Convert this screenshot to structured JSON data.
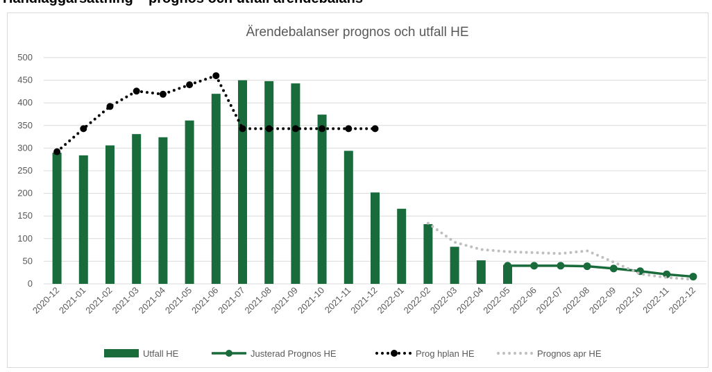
{
  "header": {
    "title": "Handläggarsättning – prognos och utfall ärendebalans"
  },
  "chart_data": {
    "type": "bar",
    "title": "Ärendebalanser prognos och utfall HE",
    "categories": [
      "2020-12",
      "2021-01",
      "2021-02",
      "2021-03",
      "2021-04",
      "2021-05",
      "2021-06",
      "2021-07",
      "2021-08",
      "2021-09",
      "2021-10",
      "2021-11",
      "2021-12",
      "2022-01",
      "2022-02",
      "2022-03",
      "2022-04",
      "2022-05",
      "2022-06",
      "2022-07",
      "2022-08",
      "2022-09",
      "2022-10",
      "2022-11",
      "2022-12"
    ],
    "series": [
      {
        "name": "Utfall HE",
        "type": "bar",
        "color": "#1a6b3c",
        "values": [
          290,
          284,
          306,
          331,
          324,
          361,
          420,
          450,
          448,
          443,
          374,
          294,
          202,
          166,
          132,
          82,
          52,
          42,
          null,
          null,
          null,
          null,
          null,
          null,
          null
        ]
      },
      {
        "name": "Justerad Prognos HE",
        "type": "line",
        "style": "solid",
        "marker": true,
        "color": "#1a6b3c",
        "values": [
          null,
          null,
          null,
          null,
          null,
          null,
          null,
          null,
          null,
          null,
          null,
          null,
          null,
          null,
          null,
          null,
          null,
          40,
          40,
          40,
          39,
          34,
          28,
          21,
          16
        ]
      },
      {
        "name": "Prog hplan HE",
        "type": "line",
        "style": "dotted",
        "marker": true,
        "color": "#000000",
        "values": [
          292,
          343,
          392,
          426,
          419,
          440,
          460,
          343,
          343,
          343,
          343,
          343,
          343,
          null,
          null,
          null,
          null,
          null,
          null,
          null,
          null,
          null,
          null,
          null,
          null
        ]
      },
      {
        "name": "Prognos apr HE",
        "type": "line",
        "style": "dotted",
        "marker": false,
        "color": "#bfbfbf",
        "values": [
          null,
          null,
          null,
          null,
          null,
          null,
          null,
          null,
          null,
          null,
          null,
          null,
          null,
          null,
          134,
          92,
          76,
          71,
          69,
          67,
          73,
          48,
          22,
          14,
          10
        ]
      }
    ],
    "ylim": [
      0,
      500
    ],
    "yticks": [
      0,
      50,
      100,
      150,
      200,
      250,
      300,
      350,
      400,
      450,
      500
    ],
    "grid": true,
    "legend": "bottom"
  }
}
